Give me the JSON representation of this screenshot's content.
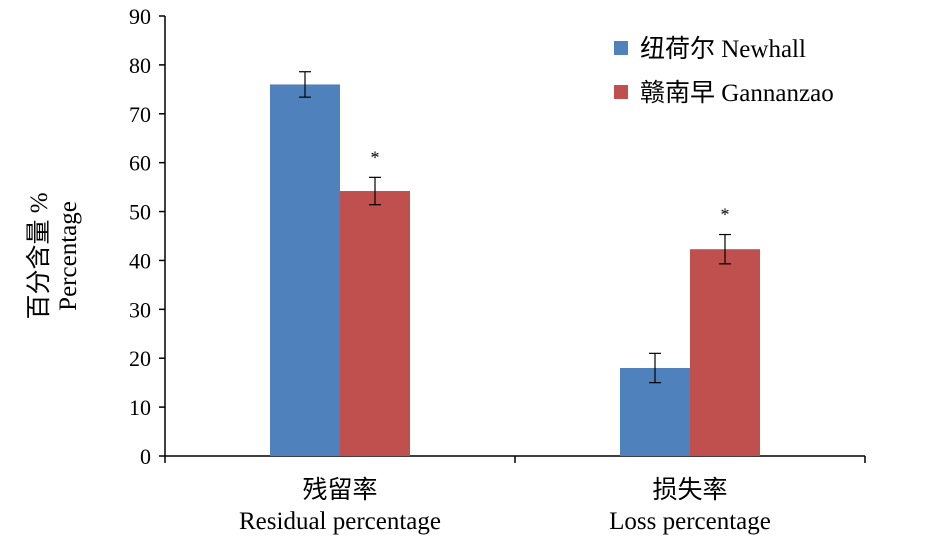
{
  "chart_data": {
    "type": "bar",
    "categories": [
      {
        "zh": "残留率",
        "en": "Residual percentage"
      },
      {
        "zh": "损失率",
        "en": "Loss percentage"
      }
    ],
    "series": [
      {
        "name": "纽荷尔 Newhall",
        "color": "#4F81BD",
        "values": [
          76.0,
          18.0
        ],
        "errors": [
          2.6,
          3.0
        ],
        "significance": [
          "",
          ""
        ]
      },
      {
        "name": "赣南早 Gannanzao",
        "color": "#C0504D",
        "values": [
          54.2,
          42.3
        ],
        "errors": [
          2.8,
          3.0
        ],
        "significance": [
          "*",
          "*"
        ]
      }
    ],
    "ylabel": {
      "zh": "百分含量 %",
      "en": "Percentage"
    },
    "xlabel": "",
    "ylim": [
      0,
      90
    ],
    "yticks": [
      "0",
      "10",
      "20",
      "30",
      "40",
      "50",
      "60",
      "70",
      "80",
      "90"
    ],
    "grid": false,
    "legend_position": "top-right"
  }
}
